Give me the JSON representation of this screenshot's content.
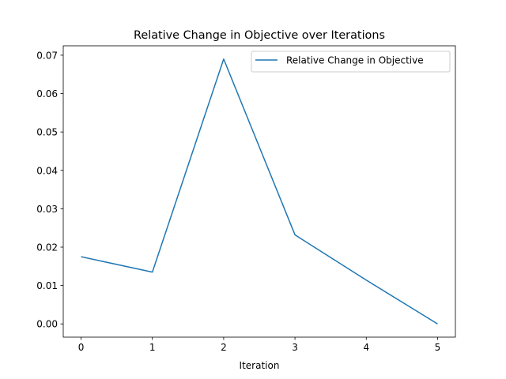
{
  "chart_data": {
    "type": "line",
    "title": "Relative Change in Objective over Iterations",
    "xlabel": "Iteration",
    "ylabel": "",
    "x": [
      0,
      1,
      2,
      3,
      4,
      5
    ],
    "series": [
      {
        "name": "Relative Change in Objective",
        "values": [
          0.0175,
          0.0135,
          0.069,
          0.0232,
          0.0114,
          0.0
        ],
        "color": "#1f77b4"
      }
    ],
    "xlim": [
      -0.25,
      5.25
    ],
    "ylim": [
      -0.00345,
      0.07245
    ],
    "xticks": [
      0,
      1,
      2,
      3,
      4,
      5
    ],
    "xtick_labels": [
      "0",
      "1",
      "2",
      "3",
      "4",
      "5"
    ],
    "yticks": [
      0.0,
      0.01,
      0.02,
      0.03,
      0.04,
      0.05,
      0.06,
      0.07
    ],
    "ytick_labels": [
      "0.00",
      "0.01",
      "0.02",
      "0.03",
      "0.04",
      "0.05",
      "0.06",
      "0.07"
    ],
    "grid": false,
    "legend_position": "top-right"
  }
}
